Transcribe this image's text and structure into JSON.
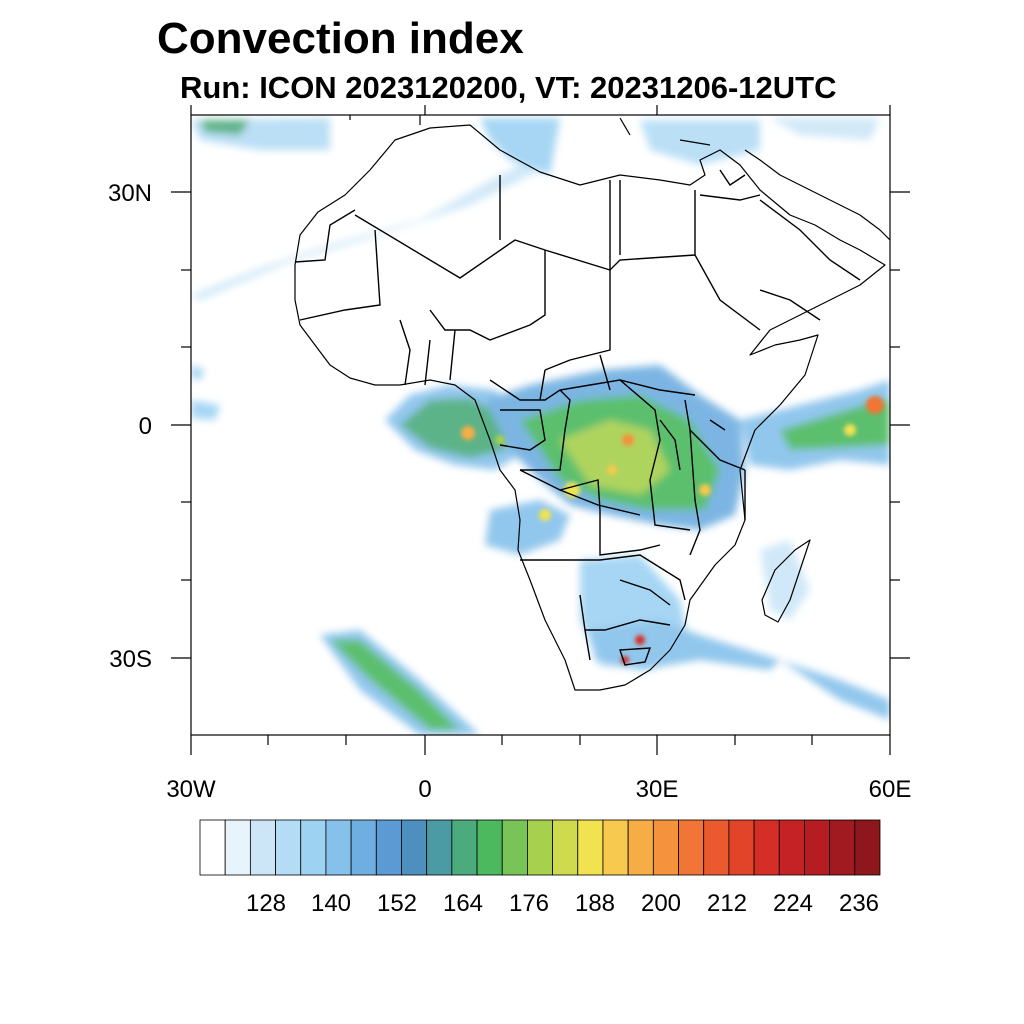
{
  "title": "Convection index",
  "subtitle": "Run: ICON 2023120200,  VT: 20231206-12UTC",
  "map": {
    "projection": "cylindrical equidistant",
    "lon_range": [
      -30,
      60
    ],
    "lat_range": [
      -40,
      40
    ],
    "lon_tick_labels": [
      "30W",
      "0",
      "30E",
      "60E"
    ],
    "lat_tick_labels": [
      "30N",
      "0",
      "30S"
    ]
  },
  "colorbar": {
    "tick_labels": [
      "128",
      "140",
      "152",
      "164",
      "176",
      "188",
      "200",
      "212",
      "224",
      "236"
    ],
    "colors": [
      "#ffffff",
      "#e8f4fc",
      "#cce6f7",
      "#b4dcf5",
      "#9dd2f3",
      "#86c1eb",
      "#6eaee0",
      "#5b9ad4",
      "#4d8fbd",
      "#4a9ba3",
      "#4cab7c",
      "#4cb95f",
      "#78c456",
      "#a7d04e",
      "#cfdb4d",
      "#f0e34f",
      "#f7c94e",
      "#f7ad45",
      "#f5923c",
      "#f17534",
      "#ea5a2e",
      "#e14429",
      "#d52e26",
      "#c52225",
      "#b51d23",
      "#a11a20",
      "#8d171c"
    ]
  }
}
